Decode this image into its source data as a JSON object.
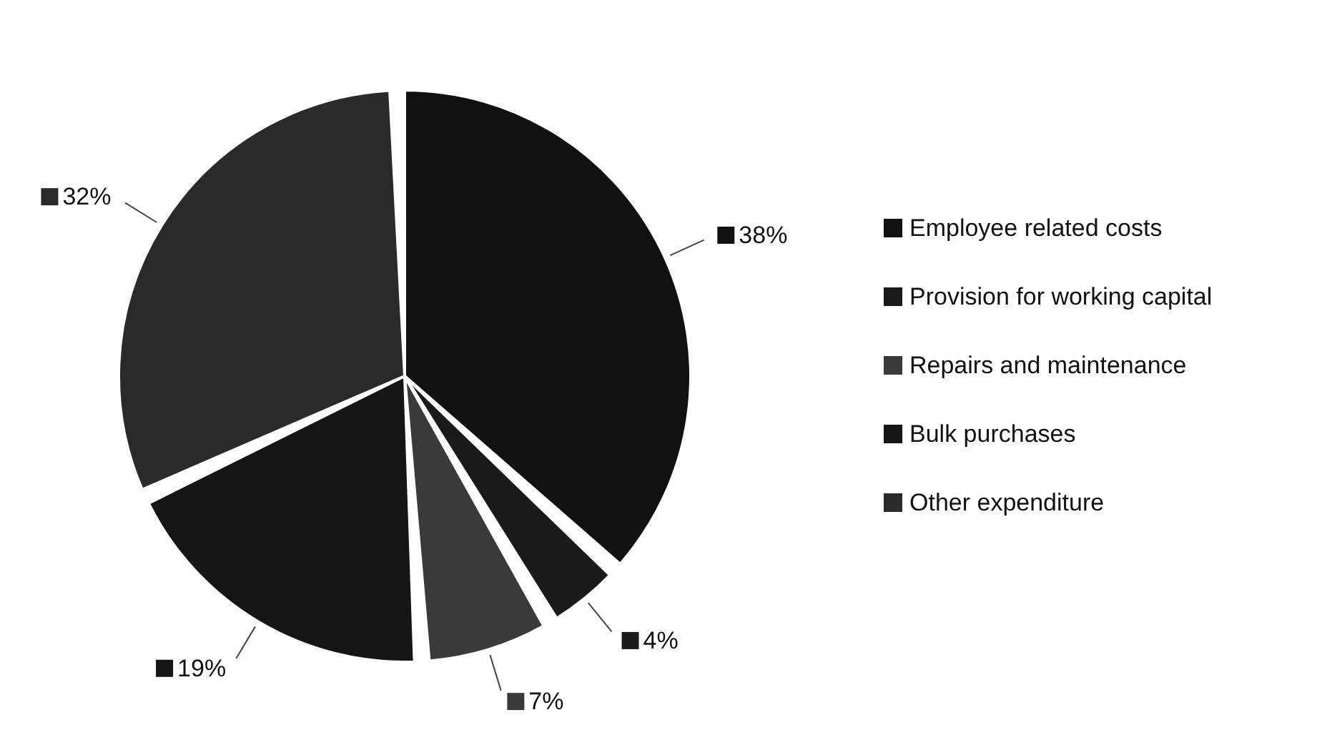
{
  "chart_data": {
    "type": "pie",
    "categories": [
      "Employee related costs",
      "Provision for working capital",
      "Repairs and maintenance",
      "Bulk purchases",
      "Other expenditure"
    ],
    "values": [
      38,
      4,
      7,
      19,
      32
    ],
    "value_labels": [
      "38%",
      "4%",
      "7%",
      "19%",
      "32%"
    ],
    "colors": [
      "#111111",
      "#1a1a1a",
      "#3a3a3a",
      "#151515",
      "#2a2a2a"
    ],
    "legend": "right"
  }
}
